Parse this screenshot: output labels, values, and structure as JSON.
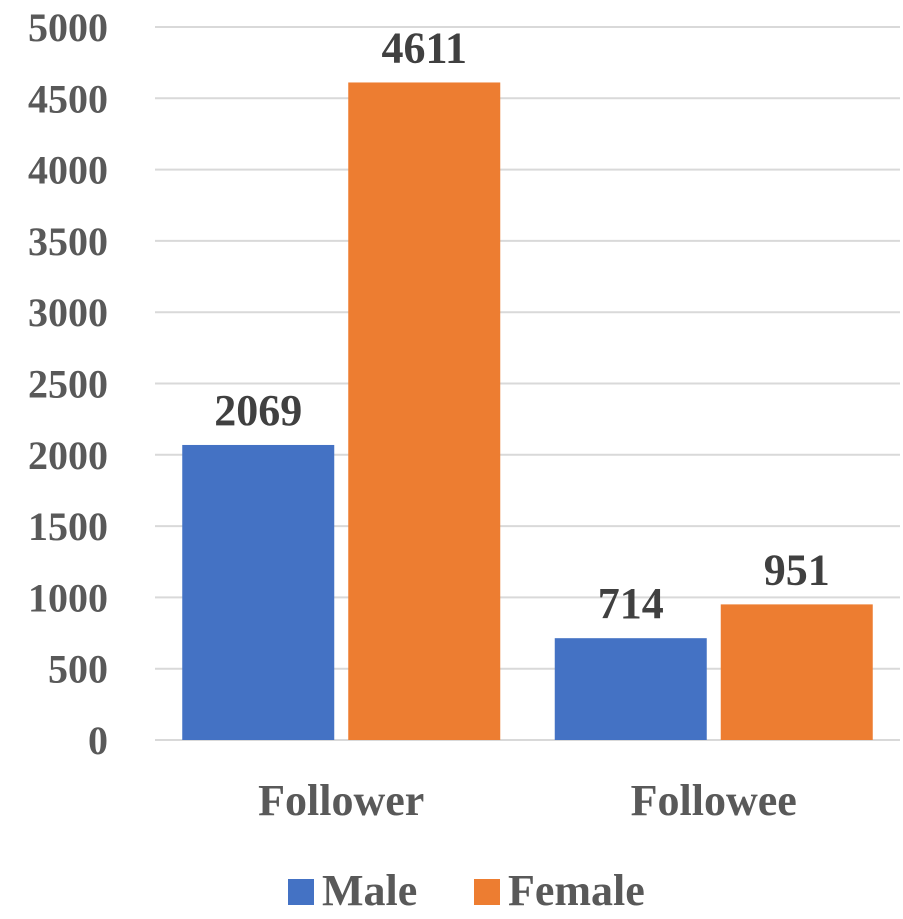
{
  "chart_data": {
    "type": "bar",
    "categories": [
      "Follower",
      "Followee"
    ],
    "series": [
      {
        "name": "Male",
        "values": [
          2069,
          714
        ],
        "color": "#4472C4"
      },
      {
        "name": "Female",
        "values": [
          4611,
          951
        ],
        "color": "#ED7D31"
      }
    ],
    "title": "",
    "xlabel": "",
    "ylabel": "",
    "ylim": [
      0,
      5000
    ],
    "yticks": [
      0,
      500,
      1000,
      1500,
      2000,
      2500,
      3000,
      3500,
      4000,
      4500,
      5000
    ],
    "grid": true,
    "legend": "bottom",
    "data_labels": true
  }
}
